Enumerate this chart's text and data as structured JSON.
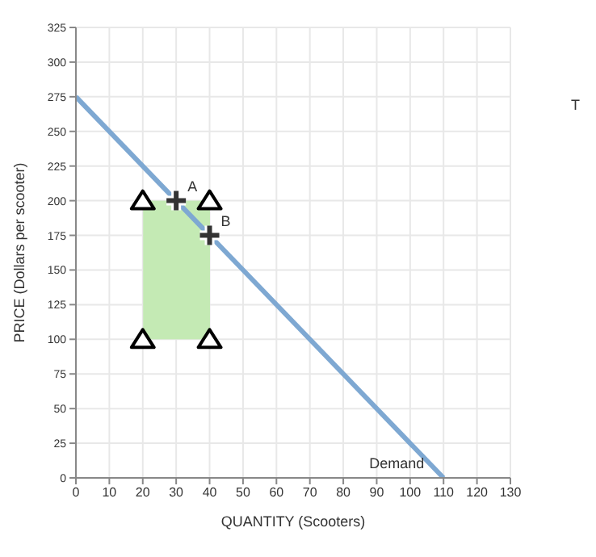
{
  "chart_data": {
    "type": "line",
    "xlabel": "QUANTITY (Scooters)",
    "ylabel": "PRICE (Dollars per scooter)",
    "xlim": [
      0,
      130
    ],
    "xticks": [
      0,
      10,
      20,
      30,
      40,
      50,
      60,
      70,
      80,
      90,
      100,
      110,
      120,
      130
    ],
    "ylim": [
      0,
      325
    ],
    "yticks": [
      0,
      25,
      50,
      75,
      100,
      125,
      150,
      175,
      200,
      225,
      250,
      275,
      300,
      325
    ],
    "grid": true,
    "series": [
      {
        "type": "bar",
        "x": [
          30
        ],
        "values": [
          100
        ],
        "base": [
          100
        ],
        "color": "#c4eab4"
      },
      {
        "name": "Demand",
        "x": [
          0,
          110
        ],
        "values": [
          275,
          0
        ],
        "color": "#7ea8d2"
      },
      {
        "type": "scatter",
        "x": [
          20,
          40,
          20,
          40
        ],
        "values": [
          200,
          200,
          100,
          100
        ],
        "color": "#000000",
        "marker": "triangle"
      },
      {
        "type": "scatter",
        "x": [
          30,
          40
        ],
        "values": [
          200,
          175
        ],
        "color": "#333333",
        "marker": "cross"
      }
    ],
    "annotations": [
      {
        "text": "A",
        "x": 30,
        "y": 200
      },
      {
        "text": "B",
        "x": 40,
        "y": 175
      },
      "T"
    ]
  }
}
